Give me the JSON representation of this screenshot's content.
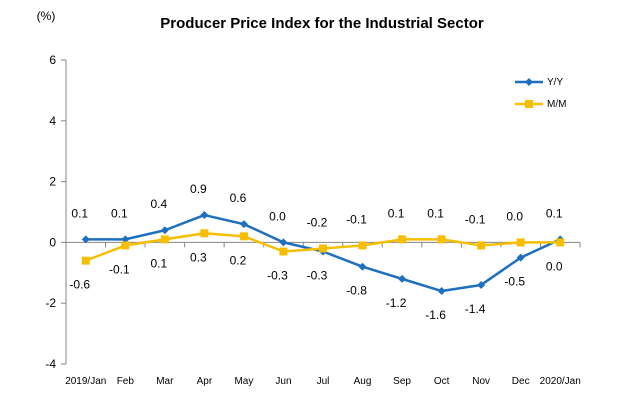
{
  "chart_data": {
    "type": "line",
    "title": "Producer Price Index for the Industrial Sector",
    "ylabel": "(%)",
    "xlabel": "",
    "ylim": [
      -4,
      6
    ],
    "yticks": [
      6,
      4,
      2,
      0,
      -2,
      -4
    ],
    "grid": false,
    "legend_position": "top-right",
    "categories": [
      "2019/Jan",
      "Feb",
      "Mar",
      "Apr",
      "May",
      "Jun",
      "Jul",
      "Aug",
      "Sep",
      "Oct",
      "Nov",
      "Dec",
      "2020/Jan"
    ],
    "series": [
      {
        "name": "Y/Y",
        "color": "#1F6FBF",
        "marker": "diamond",
        "values": [
          0.1,
          0.1,
          0.4,
          0.9,
          0.6,
          0.0,
          -0.3,
          -0.8,
          -1.2,
          -1.6,
          -1.4,
          -0.5,
          0.1
        ],
        "labels": [
          "0.1",
          "0.1",
          "0.4",
          "0.9",
          "0.6",
          "0.0",
          "-0.3",
          "-0.8",
          "-1.2",
          "-1.6",
          "-1.4",
          "-0.5",
          "0.1"
        ]
      },
      {
        "name": "M/M",
        "color": "#F5BE00",
        "marker": "square",
        "values": [
          -0.6,
          -0.1,
          0.1,
          0.3,
          0.2,
          -0.3,
          -0.2,
          -0.1,
          0.1,
          0.1,
          -0.1,
          0.0,
          0.0
        ],
        "labels": [
          "-0.6",
          "-0.1",
          "0.1",
          "0.3",
          "0.2",
          "-0.3",
          "-0.2",
          "-0.1",
          "0.1",
          "0.1",
          "-0.1",
          "0.0",
          "0.0"
        ]
      }
    ]
  }
}
